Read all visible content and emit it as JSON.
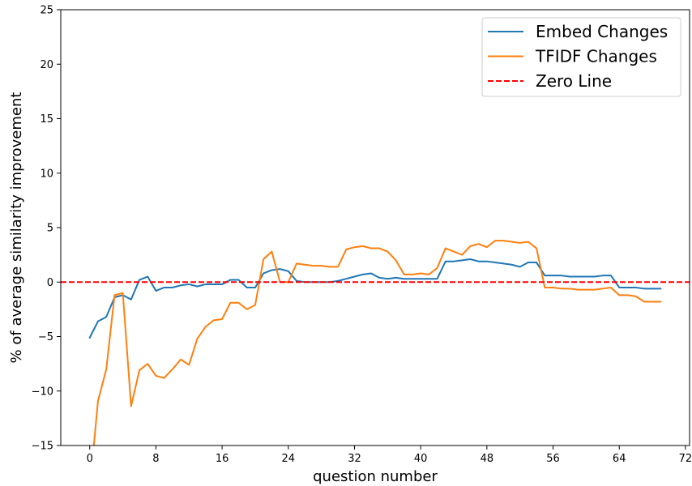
{
  "chart_data": {
    "type": "line",
    "xlabel": "question number",
    "ylabel": "% of average similarity improvement",
    "xlim": [
      -3.5,
      72.5
    ],
    "ylim": [
      -15,
      25
    ],
    "xticks": [
      0,
      8,
      16,
      24,
      32,
      40,
      48,
      56,
      64,
      72
    ],
    "yticks": [
      -15,
      -10,
      -5,
      0,
      5,
      10,
      15,
      20,
      25
    ],
    "legend_position": "top-right",
    "x": [
      0,
      1,
      2,
      3,
      4,
      5,
      6,
      7,
      8,
      9,
      10,
      11,
      12,
      13,
      14,
      15,
      16,
      17,
      18,
      19,
      20,
      21,
      22,
      23,
      24,
      25,
      26,
      27,
      28,
      29,
      30,
      31,
      32,
      33,
      34,
      35,
      36,
      37,
      38,
      39,
      40,
      41,
      42,
      43,
      44,
      45,
      46,
      47,
      48,
      49,
      50,
      51,
      52,
      53,
      54,
      55,
      56,
      57,
      58,
      59,
      60,
      61,
      62,
      63,
      64,
      65,
      66,
      67,
      68,
      69
    ],
    "series": [
      {
        "name": "Embed Changes",
        "color": "#1f77b4",
        "style": "solid",
        "values": [
          -5.1,
          -3.6,
          -3.2,
          -1.4,
          -1.2,
          -1.6,
          0.2,
          0.5,
          -0.8,
          -0.5,
          -0.5,
          -0.3,
          -0.2,
          -0.4,
          -0.2,
          -0.2,
          -0.2,
          0.2,
          0.2,
          -0.5,
          -0.5,
          0.8,
          1.1,
          1.2,
          1.0,
          0.1,
          0.0,
          0.0,
          0.0,
          0.0,
          0.1,
          0.3,
          0.5,
          0.7,
          0.8,
          0.4,
          0.3,
          0.4,
          0.3,
          0.3,
          0.3,
          0.3,
          0.3,
          1.9,
          1.9,
          2.0,
          2.1,
          1.9,
          1.9,
          1.8,
          1.7,
          1.6,
          1.4,
          1.8,
          1.8,
          0.6,
          0.6,
          0.6,
          0.5,
          0.5,
          0.5,
          0.5,
          0.6,
          0.6,
          -0.5,
          -0.5,
          -0.5,
          -0.6,
          -0.6,
          -0.6
        ]
      },
      {
        "name": "TFIDF Changes",
        "color": "#ff7f0e",
        "style": "solid",
        "values": [
          -19.0,
          -10.9,
          -8.0,
          -1.2,
          -1.0,
          -11.4,
          -8.1,
          -7.5,
          -8.6,
          -8.8,
          -8.0,
          -7.1,
          -7.6,
          -5.2,
          -4.1,
          -3.5,
          -3.4,
          -1.9,
          -1.9,
          -2.5,
          -2.1,
          2.1,
          2.8,
          0.0,
          0.0,
          1.7,
          1.6,
          1.5,
          1.5,
          1.4,
          1.4,
          3.0,
          3.2,
          3.3,
          3.1,
          3.1,
          2.8,
          2.0,
          0.7,
          0.7,
          0.8,
          0.7,
          1.3,
          3.1,
          2.8,
          2.5,
          3.3,
          3.5,
          3.2,
          3.8,
          3.8,
          3.7,
          3.6,
          3.7,
          3.1,
          -0.5,
          -0.5,
          -0.6,
          -0.6,
          -0.7,
          -0.7,
          -0.7,
          -0.6,
          -0.5,
          -1.2,
          -1.2,
          -1.3,
          -1.8,
          -1.8,
          -1.8
        ]
      },
      {
        "name": "Zero Line",
        "color": "#ff0000",
        "style": "dashed",
        "constant": 0
      }
    ]
  }
}
